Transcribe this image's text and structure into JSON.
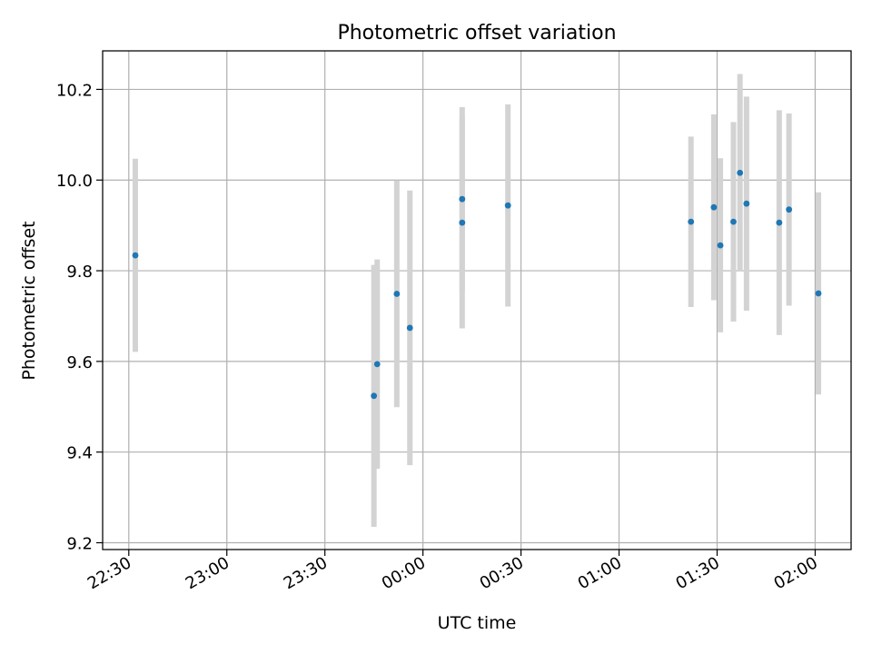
{
  "chart_data": {
    "type": "scatter",
    "title": "Photometric offset variation",
    "xlabel": "UTC time",
    "ylabel": "Photometric offset",
    "x_is_time": true,
    "xlim": [
      "22:22",
      "02:11"
    ],
    "ylim": [
      9.185,
      10.285
    ],
    "x_ticks": [
      "22:30",
      "23:00",
      "23:30",
      "00:00",
      "00:30",
      "01:00",
      "01:30",
      "02:00"
    ],
    "y_ticks": [
      9.2,
      9.4,
      9.6,
      9.8,
      10.0,
      10.2
    ],
    "y_tick_labels": [
      "9.2",
      "9.4",
      "9.6",
      "9.8",
      "10.0",
      "10.2"
    ],
    "grid": true,
    "colors": {
      "points": "#1f77b4",
      "errorbars": "#d3d3d3",
      "grid": "#b0b0b0"
    },
    "points": [
      {
        "t": "22:32",
        "y": 9.834,
        "err": 0.213
      },
      {
        "t": "23:45",
        "y": 9.524,
        "err": 0.289
      },
      {
        "t": "23:46",
        "y": 9.594,
        "err": 0.231
      },
      {
        "t": "23:52",
        "y": 9.749,
        "err": 0.25
      },
      {
        "t": "23:56",
        "y": 9.674,
        "err": 0.303
      },
      {
        "t": "00:12",
        "y": 9.958,
        "err": 0.203
      },
      {
        "t": "00:12",
        "y": 9.906,
        "err": 0.233
      },
      {
        "t": "00:26",
        "y": 9.944,
        "err": 0.223
      },
      {
        "t": "01:22",
        "y": 9.908,
        "err": 0.188
      },
      {
        "t": "01:29",
        "y": 9.94,
        "err": 0.205
      },
      {
        "t": "01:31",
        "y": 9.856,
        "err": 0.192
      },
      {
        "t": "01:35",
        "y": 9.908,
        "err": 0.22
      },
      {
        "t": "01:37",
        "y": 10.016,
        "err": 0.218
      },
      {
        "t": "01:39",
        "y": 9.948,
        "err": 0.236
      },
      {
        "t": "01:49",
        "y": 9.906,
        "err": 0.248
      },
      {
        "t": "01:52",
        "y": 9.935,
        "err": 0.212
      },
      {
        "t": "02:01",
        "y": 9.75,
        "err": 0.223
      }
    ]
  }
}
